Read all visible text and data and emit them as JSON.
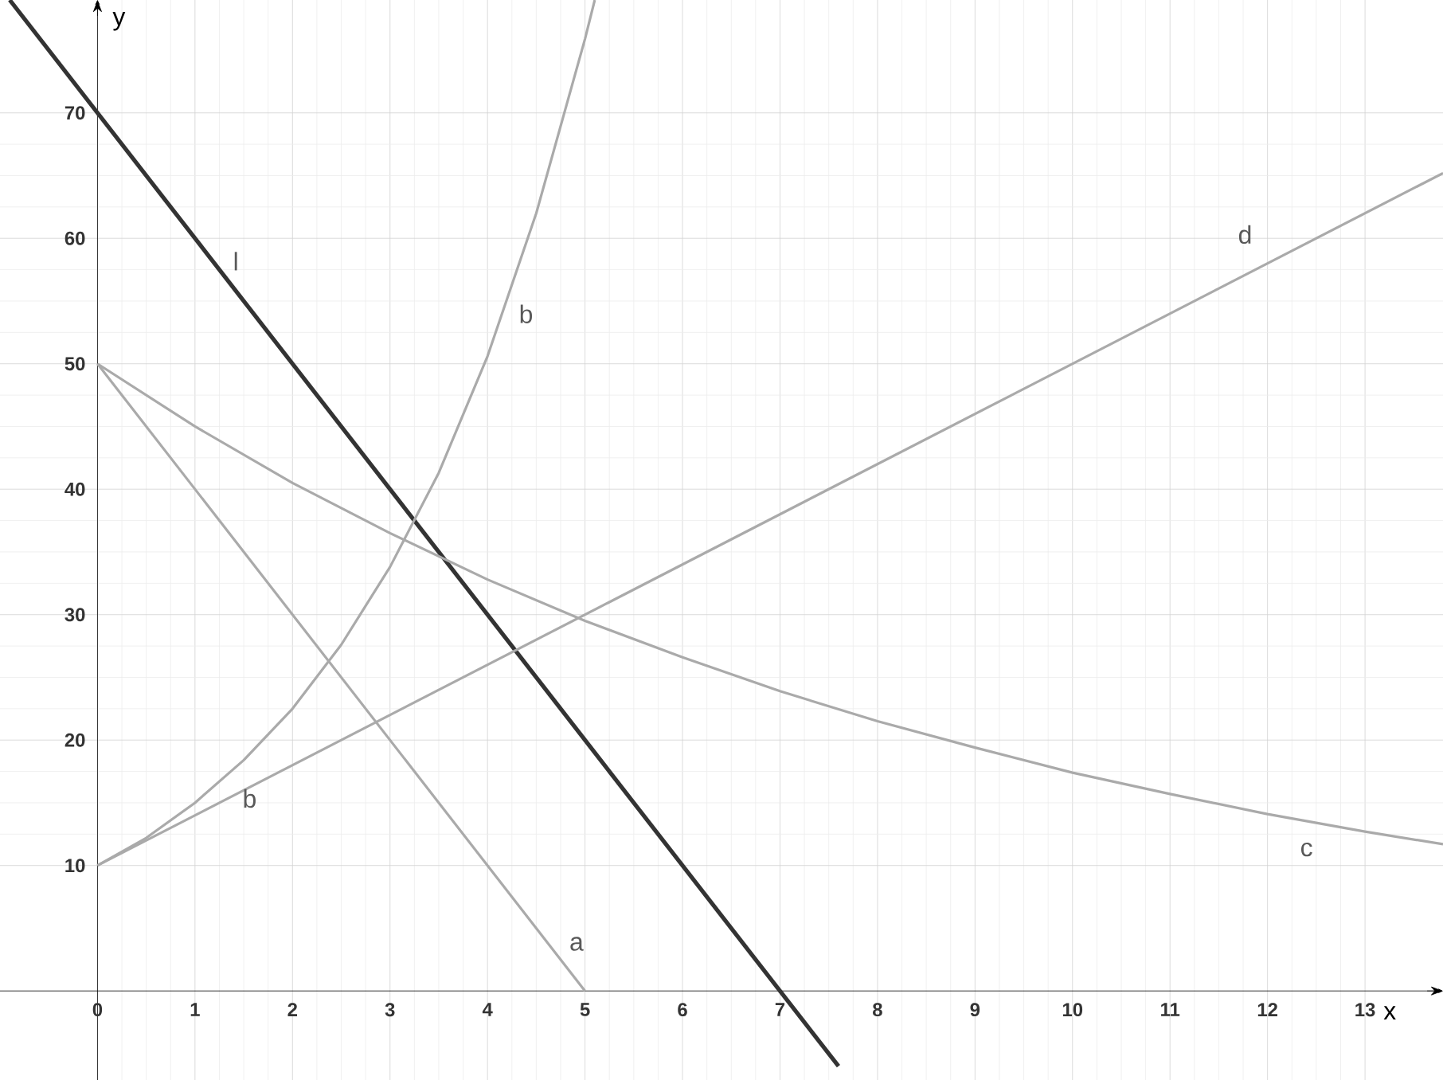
{
  "chart_data": {
    "type": "line",
    "xlabel": "x",
    "ylabel": "y",
    "xlim": [
      -1,
      13.8
    ],
    "ylim": [
      -7.1,
      79
    ],
    "xticks": [
      0,
      1,
      2,
      3,
      4,
      5,
      6,
      7,
      8,
      9,
      10,
      11,
      12,
      13
    ],
    "yticks": [
      10,
      20,
      30,
      40,
      50,
      60,
      70
    ],
    "grid": true,
    "marker": "none",
    "line_style": "solid",
    "series": [
      {
        "name": "l",
        "color": "#333333",
        "x": [
          -0.9,
          7.6
        ],
        "values": [
          79,
          -6
        ]
      },
      {
        "name": "a",
        "color": "#aaaaaa",
        "x": [
          0,
          5
        ],
        "values": [
          50,
          0
        ]
      },
      {
        "name": "b",
        "color": "#aaaaaa",
        "x": [
          0,
          0.5,
          1,
          1.5,
          2,
          2.5,
          3,
          3.5,
          4,
          4.5,
          5,
          5.1
        ],
        "values": [
          10,
          12.2,
          15,
          18.4,
          22.5,
          27.6,
          33.8,
          41.3,
          50.6,
          62,
          75.9,
          79
        ]
      },
      {
        "name": "c",
        "color": "#aaaaaa",
        "x": [
          0,
          1,
          2,
          3,
          4,
          5,
          6,
          7,
          8,
          9,
          10,
          11,
          12,
          13,
          13.8
        ],
        "values": [
          50,
          45,
          40.5,
          36.5,
          32.8,
          29.5,
          26.6,
          23.9,
          21.5,
          19.4,
          17.4,
          15.7,
          14.1,
          12.7,
          11.7
        ]
      },
      {
        "name": "d",
        "color": "#aaaaaa",
        "x": [
          0,
          13.8
        ],
        "values": [
          10,
          65.2
        ]
      }
    ],
    "annotations": [
      "b"
    ]
  }
}
